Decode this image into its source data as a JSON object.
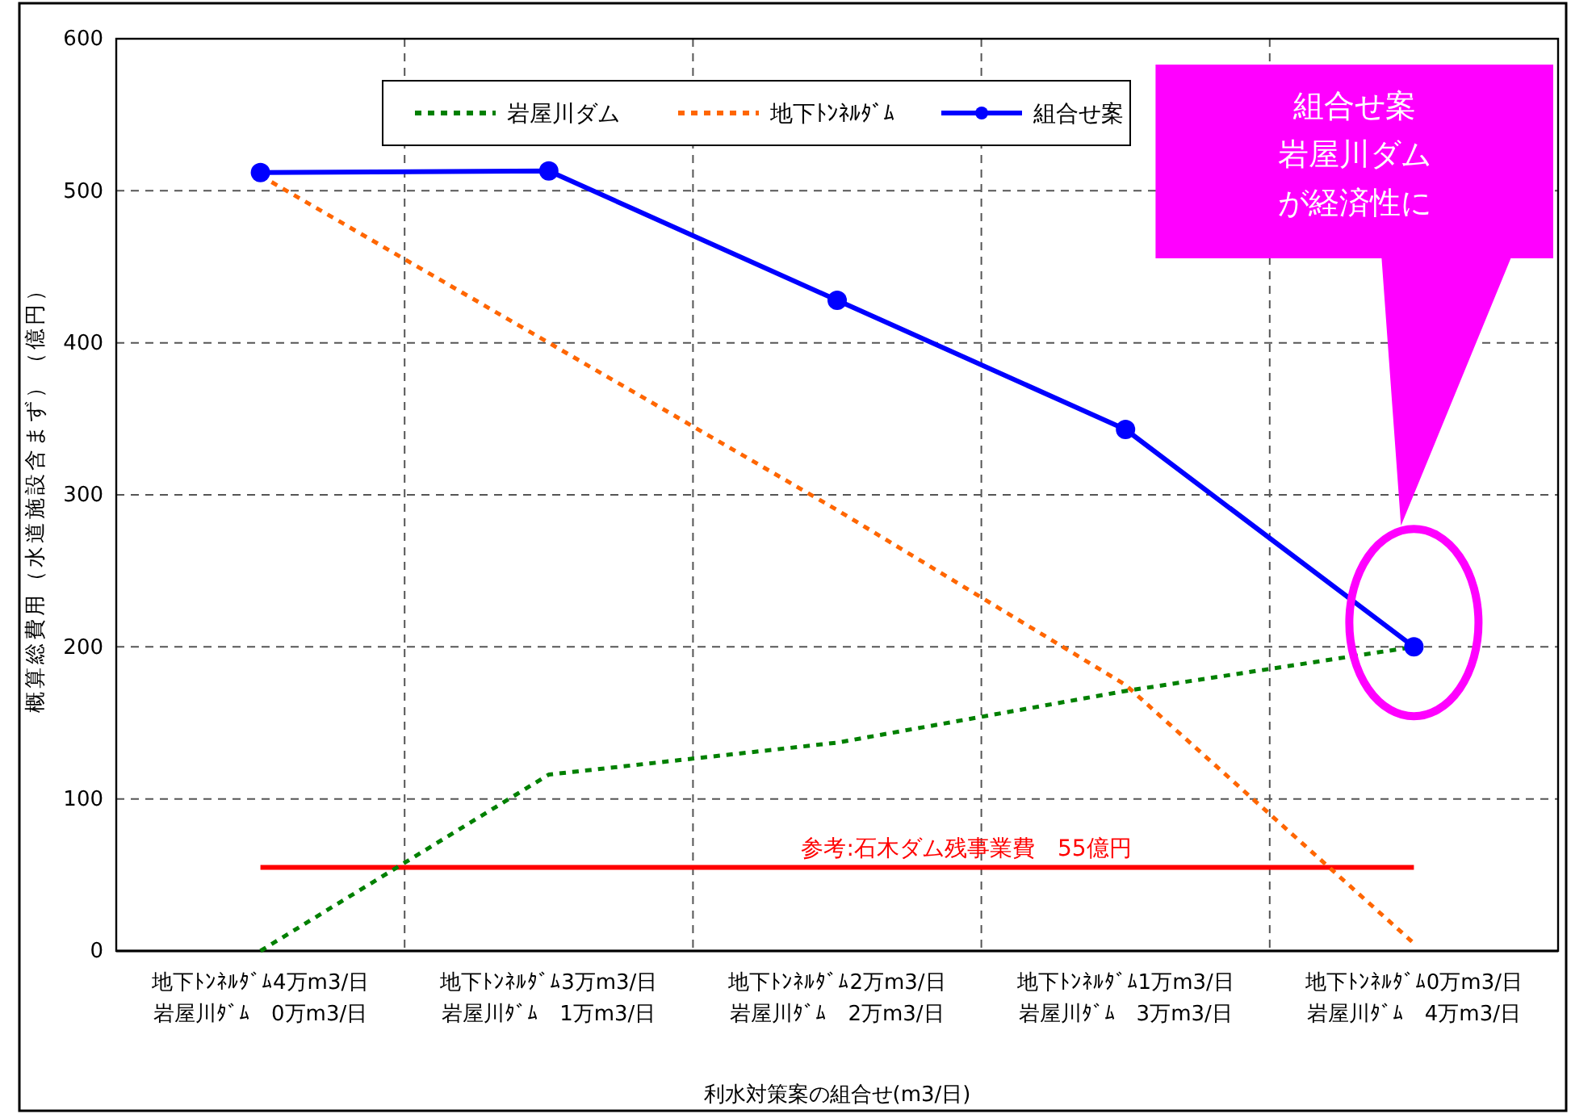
{
  "chart_data": {
    "type": "line",
    "xlabel": "利水対策案の組合せ(m3/日)",
    "ylabel": "概算総費用（水道施設含まず）（億円）",
    "categories": [
      "地下ﾄﾝﾈﾙﾀﾞﾑ4万m3/日岩屋川ﾀﾞﾑ　0万m3/日",
      "地下ﾄﾝﾈﾙﾀﾞﾑ3万m3/日岩屋川ﾀﾞﾑ　1万m3/日",
      "地下ﾄﾝﾈﾙﾀﾞﾑ2万m3/日岩屋川ﾀﾞﾑ　2万m3/日",
      "地下ﾄﾝﾈﾙﾀﾞﾑ1万m3/日岩屋川ﾀﾞﾑ　3万m3/日",
      "地下ﾄﾝﾈﾙﾀﾞﾑ0万m3/日岩屋川ﾀﾞﾑ　4万m3/日"
    ],
    "series": [
      {
        "name": "岩屋川ダム",
        "color": "#008000",
        "values": [
          0,
          116,
          137,
          171,
          200
        ],
        "line_style": "dotted",
        "marker": "none"
      },
      {
        "name": "地下ﾄﾝﾈﾙﾀﾞﾑ",
        "color": "#ff6600",
        "values": [
          510,
          400,
          290,
          175,
          5
        ],
        "line_style": "dotted",
        "marker": "none"
      },
      {
        "name": "組合せ案",
        "color": "#0000ff",
        "values": [
          512,
          513,
          428,
          343,
          200
        ],
        "line_style": "solid",
        "marker": "circle"
      }
    ],
    "ylim": [
      0,
      600
    ],
    "yticks": [
      0,
      100,
      200,
      300,
      400,
      500,
      600
    ],
    "grid": true,
    "legend": "top",
    "ref_lines": [
      {
        "axis": "y",
        "value": 55,
        "label": "参考:石木ダム残事業費　55億円",
        "color": "#ff0000"
      }
    ],
    "annotations": [
      "組合せ案",
      "岩屋川ダム",
      "が経済性に"
    ]
  }
}
